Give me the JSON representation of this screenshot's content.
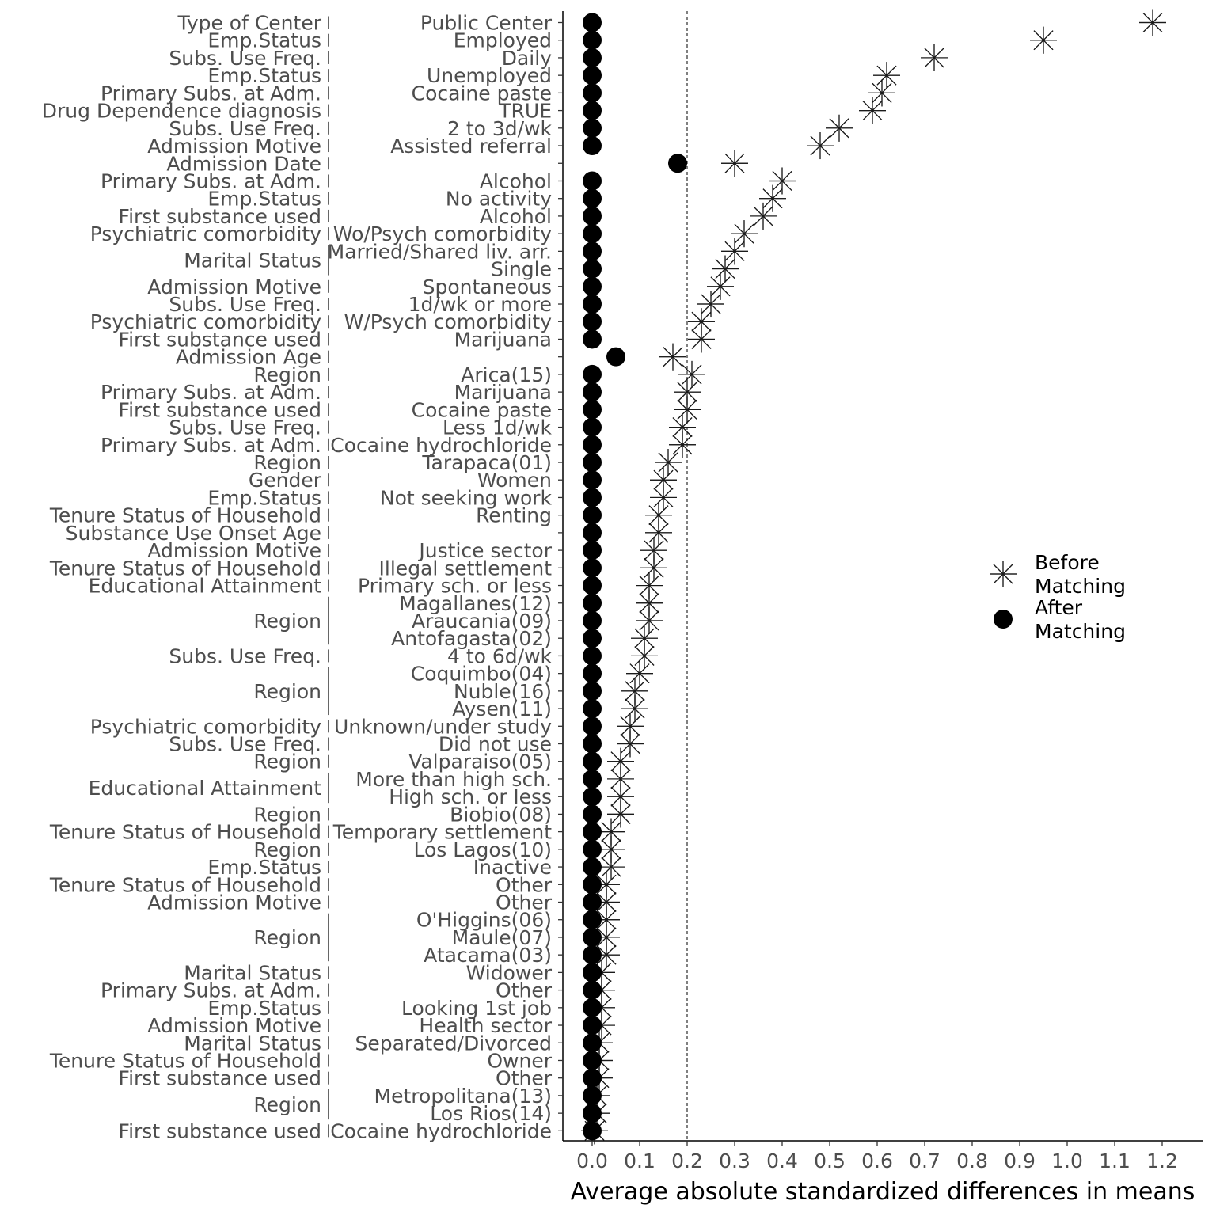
{
  "chart_data": {
    "type": "scatter",
    "xlabel": "Average absolute standardized differences in means",
    "ylabel": "",
    "xlim": [
      -0.06,
      1.29
    ],
    "x_ticks": [
      0.0,
      0.1,
      0.2,
      0.3,
      0.4,
      0.5,
      0.6,
      0.7,
      0.8,
      0.9,
      1.0,
      1.1,
      1.2
    ],
    "x_tick_labels": [
      "0.0",
      "0.1",
      "0.2",
      "0.3",
      "0.4",
      "0.5",
      "0.6",
      "0.7",
      "0.8",
      "0.9",
      "1.0",
      "1.1",
      "1.2"
    ],
    "reference_line": 0.2,
    "grid": false,
    "legend_position": "right",
    "legend": [
      {
        "name": "Before Matching",
        "label_lines": [
          "Before",
          "Matching"
        ],
        "symbol": "asterisk"
      },
      {
        "name": "After Matching",
        "label_lines": [
          "After",
          "Matching"
        ],
        "symbol": "filled-circle"
      }
    ],
    "rows": [
      {
        "group": "Type of Center",
        "level": "Public Center",
        "before": 1.18,
        "after": 0.0
      },
      {
        "group": "Emp.Status",
        "level": "Employed",
        "before": 0.95,
        "after": 0.0
      },
      {
        "group": "Subs. Use Freq.",
        "level": "Daily",
        "before": 0.72,
        "after": 0.0
      },
      {
        "group": "Emp.Status",
        "level": "Unemployed",
        "before": 0.62,
        "after": 0.0
      },
      {
        "group": "Primary Subs. at Adm.",
        "level": "Cocaine paste",
        "before": 0.61,
        "after": 0.0
      },
      {
        "group": "Drug Dependence diagnosis",
        "level": "TRUE",
        "before": 0.59,
        "after": 0.0
      },
      {
        "group": "Subs. Use Freq.",
        "level": "2 to 3d/wk",
        "before": 0.52,
        "after": 0.0
      },
      {
        "group": "Admission Motive",
        "level": "Assisted referral",
        "before": 0.48,
        "after": 0.0
      },
      {
        "group": "Admission Date",
        "level": "",
        "before": 0.3,
        "after": 0.18
      },
      {
        "group": "Primary Subs. at Adm.",
        "level": "Alcohol",
        "before": 0.4,
        "after": 0.0
      },
      {
        "group": "Emp.Status",
        "level": "No activity",
        "before": 0.38,
        "after": 0.0
      },
      {
        "group": "First substance used",
        "level": "Alcohol",
        "before": 0.36,
        "after": 0.0
      },
      {
        "group": "Psychiatric comorbidity",
        "level": "Wo/Psych comorbidity",
        "before": 0.32,
        "after": 0.0
      },
      {
        "group": "Marital Status",
        "level": "Married/Shared liv. arr.",
        "before": 0.3,
        "after": 0.0
      },
      {
        "group": "Marital Status",
        "level": "Single",
        "before": 0.28,
        "after": 0.0
      },
      {
        "group": "Admission Motive",
        "level": "Spontaneous",
        "before": 0.27,
        "after": 0.0
      },
      {
        "group": "Subs. Use Freq.",
        "level": "1d/wk or more",
        "before": 0.25,
        "after": 0.0
      },
      {
        "group": "Psychiatric comorbidity",
        "level": "W/Psych comorbidity",
        "before": 0.23,
        "after": 0.0
      },
      {
        "group": "First substance used",
        "level": "Marijuana",
        "before": 0.23,
        "after": 0.0
      },
      {
        "group": "Admission Age",
        "level": "",
        "before": 0.17,
        "after": 0.05
      },
      {
        "group": "Region",
        "level": "Arica(15)",
        "before": 0.21,
        "after": 0.0
      },
      {
        "group": "Primary Subs. at Adm.",
        "level": "Marijuana",
        "before": 0.2,
        "after": 0.0
      },
      {
        "group": "First substance used",
        "level": "Cocaine paste",
        "before": 0.2,
        "after": 0.0
      },
      {
        "group": "Subs. Use Freq.",
        "level": "Less 1d/wk",
        "before": 0.19,
        "after": 0.0
      },
      {
        "group": "Primary Subs. at Adm.",
        "level": "Cocaine hydrochloride",
        "before": 0.19,
        "after": 0.0
      },
      {
        "group": "Region",
        "level": "Tarapaca(01)",
        "before": 0.16,
        "after": 0.0
      },
      {
        "group": "Gender",
        "level": "Women",
        "before": 0.15,
        "after": 0.0
      },
      {
        "group": "Emp.Status",
        "level": "Not seeking work",
        "before": 0.15,
        "after": 0.0
      },
      {
        "group": "Tenure Status of Household",
        "level": "Renting",
        "before": 0.14,
        "after": 0.0
      },
      {
        "group": "Substance Use Onset Age",
        "level": "",
        "before": 0.14,
        "after": 0.0
      },
      {
        "group": "Admission Motive",
        "level": "Justice sector",
        "before": 0.13,
        "after": 0.0
      },
      {
        "group": "Tenure Status of Household",
        "level": "Illegal settlement",
        "before": 0.13,
        "after": 0.0
      },
      {
        "group": "Educational Attainment",
        "level": "Primary sch. or less",
        "before": 0.12,
        "after": 0.0
      },
      {
        "group": "Region",
        "level": "Magallanes(12)",
        "before": 0.12,
        "after": 0.0
      },
      {
        "group": "Region",
        "level": "Araucania(09)",
        "before": 0.12,
        "after": 0.0
      },
      {
        "group": "Region",
        "level": "Antofagasta(02)",
        "before": 0.11,
        "after": 0.0
      },
      {
        "group": "Subs. Use Freq.",
        "level": "4 to 6d/wk",
        "before": 0.11,
        "after": 0.0
      },
      {
        "group": "Region",
        "level": "Coquimbo(04)",
        "before": 0.1,
        "after": 0.0
      },
      {
        "group": "Region",
        "level": "Nuble(16)",
        "before": 0.09,
        "after": 0.0
      },
      {
        "group": "Region",
        "level": "Aysen(11)",
        "before": 0.09,
        "after": 0.0
      },
      {
        "group": "Psychiatric comorbidity",
        "level": "Unknown/under study",
        "before": 0.08,
        "after": 0.0
      },
      {
        "group": "Subs. Use Freq.",
        "level": "Did not use",
        "before": 0.08,
        "after": 0.0
      },
      {
        "group": "Region",
        "level": "Valparaiso(05)",
        "before": 0.06,
        "after": 0.0
      },
      {
        "group": "Educational Attainment",
        "level": "More than high sch.",
        "before": 0.06,
        "after": 0.0
      },
      {
        "group": "Educational Attainment",
        "level": "High sch. or less",
        "before": 0.06,
        "after": 0.0
      },
      {
        "group": "Region",
        "level": "Biobio(08)",
        "before": 0.06,
        "after": 0.0
      },
      {
        "group": "Tenure Status of Household",
        "level": "Temporary settlement",
        "before": 0.04,
        "after": 0.0
      },
      {
        "group": "Region",
        "level": "Los Lagos(10)",
        "before": 0.04,
        "after": 0.0
      },
      {
        "group": "Emp.Status",
        "level": "Inactive",
        "before": 0.04,
        "after": 0.0
      },
      {
        "group": "Tenure Status of Household",
        "level": "Other",
        "before": 0.03,
        "after": 0.0
      },
      {
        "group": "Admission Motive",
        "level": "Other",
        "before": 0.03,
        "after": 0.0
      },
      {
        "group": "Region",
        "level": "O'Higgins(06)",
        "before": 0.03,
        "after": 0.0
      },
      {
        "group": "Region",
        "level": "Maule(07)",
        "before": 0.03,
        "after": 0.0
      },
      {
        "group": "Region",
        "level": "Atacama(03)",
        "before": 0.03,
        "after": 0.0
      },
      {
        "group": "Marital Status",
        "level": "Widower",
        "before": 0.02,
        "after": 0.0
      },
      {
        "group": "Primary Subs. at Adm.",
        "level": "Other",
        "before": 0.02,
        "after": 0.0
      },
      {
        "group": "Emp.Status",
        "level": "Looking 1st job",
        "before": 0.02,
        "after": 0.0
      },
      {
        "group": "Admission Motive",
        "level": "Health sector",
        "before": 0.02,
        "after": 0.0
      },
      {
        "group": "Marital Status",
        "level": "Separated/Divorced",
        "before": 0.015,
        "after": 0.0
      },
      {
        "group": "Tenure Status of Household",
        "level": "Owner",
        "before": 0.015,
        "after": 0.0
      },
      {
        "group": "First substance used",
        "level": "Other",
        "before": 0.015,
        "after": 0.0
      },
      {
        "group": "Region",
        "level": "Metropolitana(13)",
        "before": 0.01,
        "after": 0.0
      },
      {
        "group": "Region",
        "level": "Los Rios(14)",
        "before": 0.01,
        "after": 0.0
      },
      {
        "group": "First substance used",
        "level": "Cocaine hydrochloride",
        "before": 0.005,
        "after": 0.0
      }
    ]
  }
}
